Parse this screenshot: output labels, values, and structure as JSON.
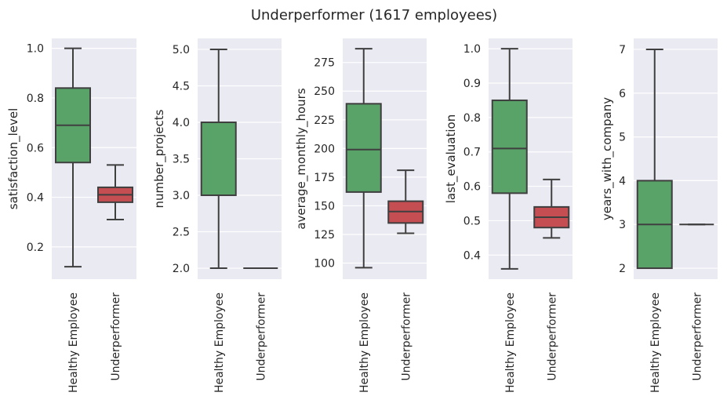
{
  "chart_data": {
    "title": "Underperformer (1617 employees)",
    "type": "box",
    "categories": [
      "Healthy Employee",
      "Underperformer"
    ],
    "colors": {
      "Healthy Employee": "#59a268",
      "Underperformer": "#c44e52",
      "line": "#3f3f3f",
      "axes_bg": "#eaeaf2",
      "grid": "#ffffff"
    },
    "grid": true,
    "panels": [
      {
        "ylabel": "satisfaction_level",
        "ylim": [
          0.07,
          1.04
        ],
        "yticks": [
          0.2,
          0.4,
          0.6,
          0.8,
          1.0
        ],
        "ytick_labels": [
          "0.2",
          "0.4",
          "0.6",
          "0.8",
          "1.0"
        ],
        "boxes": [
          {
            "category": "Healthy Employee",
            "whisker_low": 0.12,
            "q1": 0.54,
            "median": 0.69,
            "q3": 0.84,
            "whisker_high": 1.0
          },
          {
            "category": "Underperformer",
            "whisker_low": 0.31,
            "q1": 0.38,
            "median": 0.41,
            "q3": 0.44,
            "whisker_high": 0.53
          }
        ]
      },
      {
        "ylabel": "number_projects",
        "ylim": [
          1.85,
          5.15
        ],
        "yticks": [
          2.0,
          2.5,
          3.0,
          3.5,
          4.0,
          4.5,
          5.0
        ],
        "ytick_labels": [
          "2.0",
          "2.5",
          "3.0",
          "3.5",
          "4.0",
          "4.5",
          "5.0"
        ],
        "boxes": [
          {
            "category": "Healthy Employee",
            "whisker_low": 2.0,
            "q1": 3.0,
            "median": 3.0,
            "q3": 4.0,
            "whisker_high": 5.0
          },
          {
            "category": "Underperformer",
            "whisker_low": 2.0,
            "q1": 2.0,
            "median": 2.0,
            "q3": 2.0,
            "whisker_high": 2.0
          }
        ]
      },
      {
        "ylabel": "average_monthly_hours",
        "ylim": [
          86,
          296
        ],
        "yticks": [
          100,
          125,
          150,
          175,
          200,
          225,
          250,
          275
        ],
        "ytick_labels": [
          "100",
          "125",
          "150",
          "175",
          "200",
          "225",
          "250",
          "275"
        ],
        "boxes": [
          {
            "category": "Healthy Employee",
            "whisker_low": 96,
            "q1": 162,
            "median": 199,
            "q3": 239,
            "whisker_high": 287
          },
          {
            "category": "Underperformer",
            "whisker_low": 126,
            "q1": 135,
            "median": 145,
            "q3": 154,
            "whisker_high": 181
          }
        ]
      },
      {
        "ylabel": "last_evaluation",
        "ylim": [
          0.33,
          1.03
        ],
        "yticks": [
          0.4,
          0.5,
          0.6,
          0.7,
          0.8,
          0.9,
          1.0
        ],
        "ytick_labels": [
          "0.4",
          "0.5",
          "0.6",
          "0.7",
          "0.8",
          "0.9",
          "1.0"
        ],
        "boxes": [
          {
            "category": "Healthy Employee",
            "whisker_low": 0.36,
            "q1": 0.58,
            "median": 0.71,
            "q3": 0.85,
            "whisker_high": 1.0
          },
          {
            "category": "Underperformer",
            "whisker_low": 0.45,
            "q1": 0.48,
            "median": 0.51,
            "q3": 0.54,
            "whisker_high": 0.62
          }
        ]
      },
      {
        "ylabel": "years_with_company",
        "ylim": [
          1.75,
          7.25
        ],
        "yticks": [
          2,
          3,
          4,
          5,
          6,
          7
        ],
        "ytick_labels": [
          "2",
          "3",
          "4",
          "5",
          "6",
          "7"
        ],
        "boxes": [
          {
            "category": "Healthy Employee",
            "whisker_low": 2,
            "q1": 2,
            "median": 3,
            "q3": 4,
            "whisker_high": 7
          },
          {
            "category": "Underperformer",
            "whisker_low": 3,
            "q1": 3,
            "median": 3,
            "q3": 3,
            "whisker_high": 3
          }
        ]
      }
    ]
  }
}
